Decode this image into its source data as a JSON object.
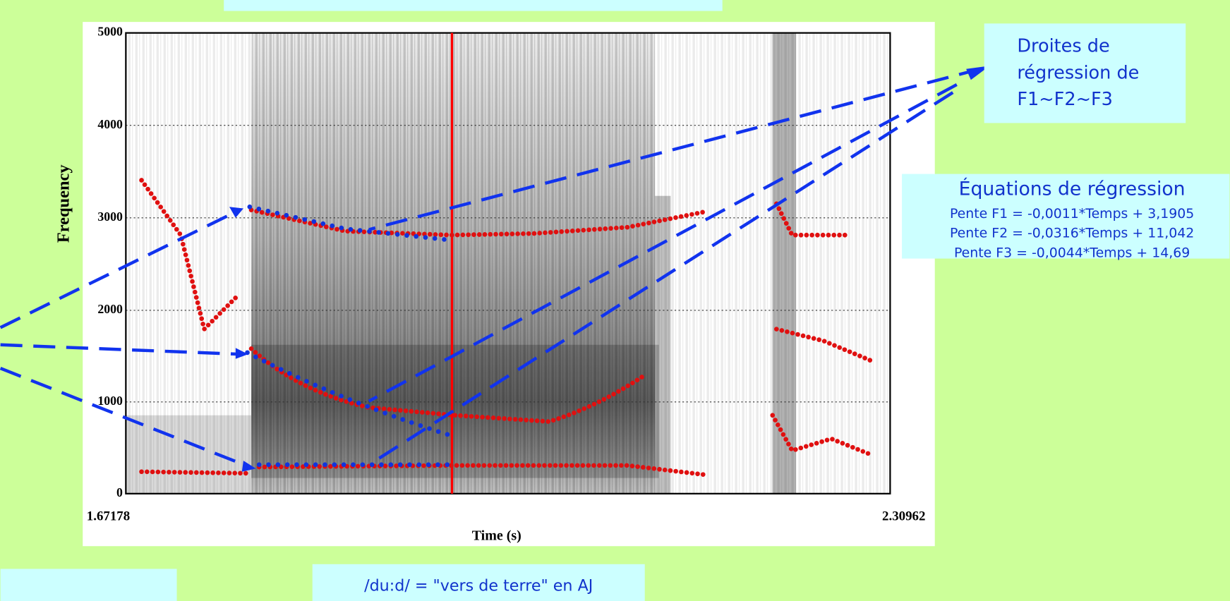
{
  "plot": {
    "y_label": "Frequency",
    "y_ticks": [
      "5000",
      "4000",
      "3000",
      "2000",
      "1000",
      "0"
    ],
    "x_start": "1.67178",
    "x_end": "2.30962",
    "x_label": "Time (s)"
  },
  "callout": {
    "lines": [
      "Droites de",
      "régression de",
      "F1~F2~F3"
    ]
  },
  "equations": {
    "title": "Équations de régression",
    "lines": [
      "Pente F1 = -0,0011*Temps + 3,1905",
      "Pente F2 = -0,0316*Temps + 11,042",
      "Pente F3 = -0,0044*Temps + 14,69"
    ]
  },
  "caption": "/du:d/ = \"vers de terre\" en AJ"
}
